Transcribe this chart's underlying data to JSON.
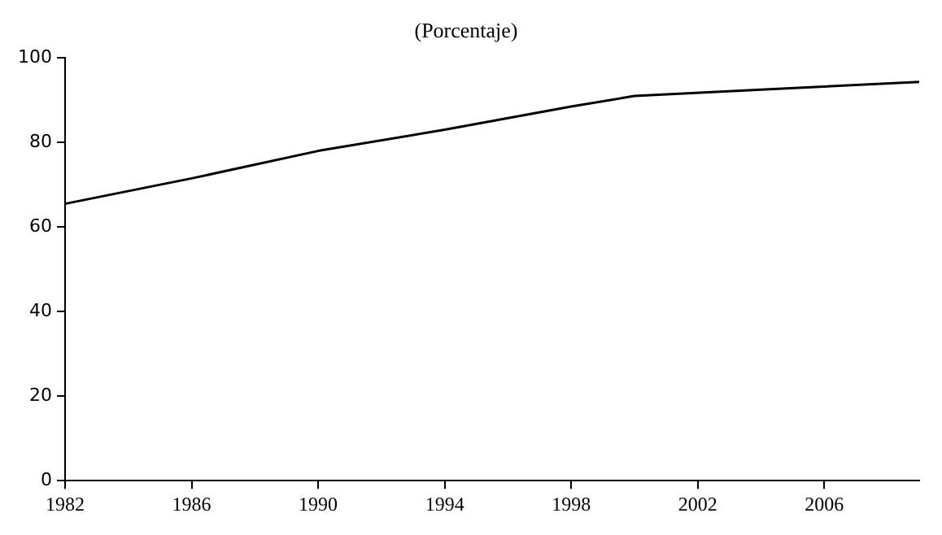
{
  "chart_data": {
    "type": "line",
    "title": "(Porcentaje)",
    "x": [
      1982,
      1986,
      1990,
      1994,
      1998,
      2000,
      2004,
      2009
    ],
    "series": [
      {
        "color": "#000000",
        "values": [
          65.5,
          71.5,
          78,
          83,
          88.5,
          91,
          92.5,
          94.3
        ]
      }
    ],
    "xlim": [
      1982,
      2009
    ],
    "xticks": [
      1982,
      1986,
      1990,
      1994,
      1998,
      2002,
      2006
    ],
    "ylim": [
      0,
      100
    ],
    "yticks": [
      0,
      20,
      40,
      60,
      80,
      100
    ],
    "grid": false,
    "legend": false,
    "marker": "none",
    "line_style": "solid"
  }
}
